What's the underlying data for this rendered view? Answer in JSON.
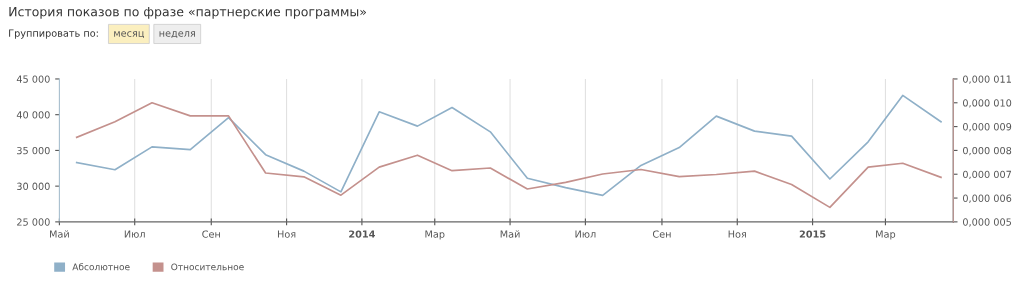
{
  "chart_data": {
    "type": "line",
    "title": "История показов по фразе «партнерские программы»",
    "annotations": [
      "Группировать по:",
      "месяц",
      "неделя"
    ],
    "x": [
      "2013-05-15",
      "2013-06-15",
      "2013-07-15",
      "2013-08-15",
      "2013-09-15",
      "2013-10-15",
      "2013-11-15",
      "2013-12-15",
      "2014-01-15",
      "2014-02-15",
      "2014-03-15",
      "2014-04-15",
      "2014-05-15",
      "2014-06-15",
      "2014-07-15",
      "2014-08-15",
      "2014-09-15",
      "2014-10-15",
      "2014-11-15",
      "2014-12-15",
      "2015-01-15",
      "2015-02-15",
      "2015-03-15",
      "2015-04-15"
    ],
    "series": [
      {
        "name": "Абсолютное",
        "color": "#8fb0c8",
        "values": [
          33300,
          32300,
          35500,
          35100,
          39600,
          34400,
          32100,
          29200,
          40400,
          38400,
          41000,
          37600,
          31100,
          29800,
          28700,
          32900,
          35400,
          39800,
          37700,
          37000,
          31000,
          36200,
          42700,
          39000
        ]
      },
      {
        "name": "Относительное",
        "color": "#c4918d",
        "axis": "y2",
        "values": [
          8.55e-06,
          9.2e-06,
          1e-05,
          9.45e-06,
          9.45e-06,
          7.05e-06,
          6.89e-06,
          6.12e-06,
          7.3e-06,
          7.8e-06,
          7.15e-06,
          7.26e-06,
          6.38e-06,
          6.66e-06,
          7.01e-06,
          7.2e-06,
          6.9e-06,
          6.99e-06,
          7.13e-06,
          6.57e-06,
          5.61e-06,
          7.3e-06,
          7.46e-06,
          6.87e-06
        ]
      }
    ],
    "xlim": [
      "2013-05-01",
      "2015-04-25"
    ],
    "xticks": [
      {
        "value": "2013-05-01",
        "label": "Май"
      },
      {
        "value": "2013-07-01",
        "label": "Июл"
      },
      {
        "value": "2013-09-01",
        "label": "Сен"
      },
      {
        "value": "2013-11-01",
        "label": "Ноя"
      },
      {
        "value": "2014-01-01",
        "label": "2014"
      },
      {
        "value": "2014-03-01",
        "label": "Мар"
      },
      {
        "value": "2014-05-01",
        "label": "Май"
      },
      {
        "value": "2014-07-01",
        "label": "Июл"
      },
      {
        "value": "2014-09-01",
        "label": "Сен"
      },
      {
        "value": "2014-11-01",
        "label": "Ноя"
      },
      {
        "value": "2015-01-01",
        "label": "2015"
      },
      {
        "value": "2015-03-01",
        "label": "Мар"
      }
    ],
    "ylim": [
      25000,
      45000
    ],
    "yticks": [
      {
        "value": 25000,
        "label": "25 000"
      },
      {
        "value": 30000,
        "label": "30 000"
      },
      {
        "value": 35000,
        "label": "35 000"
      },
      {
        "value": 40000,
        "label": "40 000"
      },
      {
        "value": 45000,
        "label": "45 000"
      }
    ],
    "y2lim": [
      5e-06,
      1.1e-05
    ],
    "y2ticks": [
      {
        "value": 5e-06,
        "label": "0,000 005"
      },
      {
        "value": 6e-06,
        "label": "0,000 006"
      },
      {
        "value": 7e-06,
        "label": "0,000 007"
      },
      {
        "value": 8e-06,
        "label": "0,000 008"
      },
      {
        "value": 9e-06,
        "label": "0,000 009"
      },
      {
        "value": 1e-05,
        "label": "0,000 010"
      },
      {
        "value": 1.1e-05,
        "label": "0,000 011"
      }
    ],
    "grid": "x",
    "legend": "bottom left",
    "marker": "none",
    "line_style": "solid"
  }
}
